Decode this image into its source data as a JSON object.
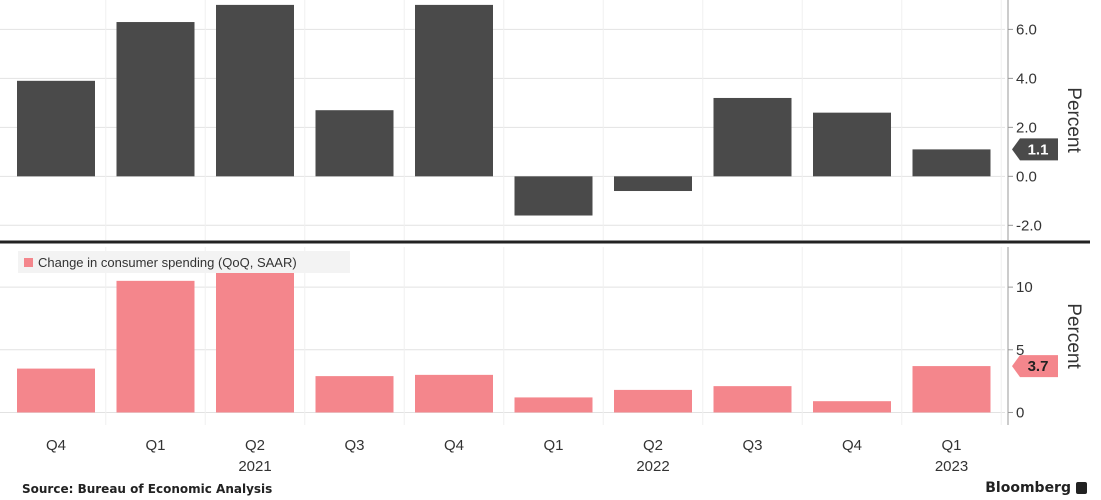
{
  "chart_data": [
    {
      "type": "bar",
      "title": "",
      "legend": {
        "label": "",
        "placement": "top-left"
      },
      "ylabel": "Percent",
      "ylim": [
        -2.6,
        7.2
      ],
      "yticks": [
        6.0,
        4.0,
        2.0,
        0.0,
        -2.0
      ],
      "ytick_labels": [
        "6.0",
        "4.0",
        "2.0",
        "0.0",
        "-2.0"
      ],
      "categories": [
        "Q4",
        "Q1",
        "Q2",
        "Q3",
        "Q4",
        "Q1",
        "Q2",
        "Q3",
        "Q4",
        "Q1"
      ],
      "values": [
        3.9,
        6.3,
        7.0,
        2.7,
        7.0,
        -1.6,
        -0.6,
        3.2,
        2.6,
        1.1
      ],
      "color": "#4a4a4a",
      "latest_value_label": "1.1",
      "grid": true
    },
    {
      "type": "bar",
      "title": "",
      "legend": {
        "label": "Change in consumer spending (QoQ, SAAR)",
        "placement": "top-left"
      },
      "ylabel": "Percent",
      "ylim": [
        -1.0,
        13.2
      ],
      "yticks": [
        10,
        5,
        0
      ],
      "ytick_labels": [
        "10",
        "5",
        "0"
      ],
      "categories": [
        "Q4",
        "Q1",
        "Q2",
        "Q3",
        "Q4",
        "Q1",
        "Q2",
        "Q3",
        "Q4",
        "Q1"
      ],
      "values": [
        3.5,
        10.5,
        11.9,
        2.9,
        3.0,
        1.2,
        1.8,
        2.1,
        0.9,
        3.7
      ],
      "color": "#f4868c",
      "latest_value_label": "3.7",
      "grid": true
    }
  ],
  "x_axis": {
    "quarters": [
      "Q4",
      "Q1",
      "Q2",
      "Q3",
      "Q4",
      "Q1",
      "Q2",
      "Q3",
      "Q4",
      "Q1"
    ],
    "years": [
      {
        "label": "2021",
        "under": 2
      },
      {
        "label": "2022",
        "under": 6
      },
      {
        "label": "2023",
        "under": 9
      }
    ]
  },
  "footer": {
    "source": "Source: Bureau of Economic Analysis",
    "brand": "Bloomberg"
  },
  "colors": {
    "dark_bar": "#4a4a4a",
    "pink_bar": "#f4868c",
    "grid": "#e2e2e2",
    "divider": "#222222"
  }
}
